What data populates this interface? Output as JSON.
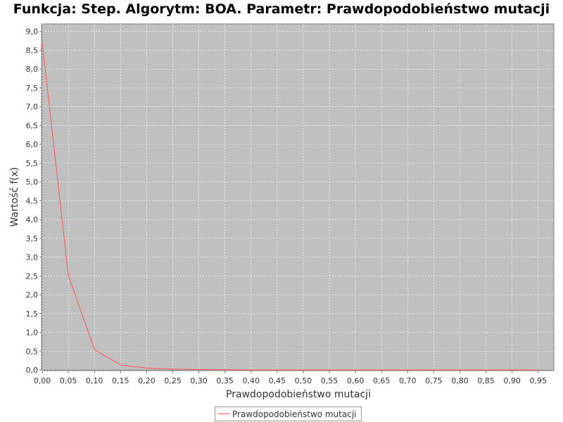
{
  "chart_data": {
    "type": "line",
    "title": "Funkcja: Step. Algorytm: BOA. Parametr: Prawdopodobieństwo mutacji",
    "xlabel": "Prawdopodobieństwo mutacji",
    "ylabel": "Wartość f(x)",
    "xlim": [
      0.0,
      0.98
    ],
    "ylim": [
      0.0,
      9.2
    ],
    "x_ticks": [
      "0,00",
      "0,05",
      "0,10",
      "0,15",
      "0,20",
      "0,25",
      "0,30",
      "0,35",
      "0,40",
      "0,45",
      "0,50",
      "0,55",
      "0,60",
      "0,65",
      "0,70",
      "0,75",
      "0,80",
      "0,85",
      "0,90",
      "0,95"
    ],
    "y_ticks": [
      "0,0",
      "0,5",
      "1,0",
      "1,5",
      "2,0",
      "2,5",
      "3,0",
      "3,5",
      "4,0",
      "4,5",
      "5,0",
      "5,5",
      "6,0",
      "6,5",
      "7,0",
      "7,5",
      "8,0",
      "8,5",
      "9,0"
    ],
    "grid": true,
    "legend_position": "bottom",
    "series": [
      {
        "name": "Prawdopodobieństwo mutacji",
        "color": "#ff5555",
        "x": [
          0.0,
          0.05,
          0.1,
          0.15,
          0.2,
          0.25,
          0.3,
          0.35,
          0.4,
          0.45,
          0.5,
          0.55,
          0.6,
          0.65,
          0.7,
          0.75,
          0.8,
          0.85,
          0.9,
          0.95
        ],
        "y": [
          8.7,
          2.52,
          0.54,
          0.13,
          0.05,
          0.02,
          0.01,
          0.01,
          0.0,
          0.0,
          0.0,
          0.0,
          0.0,
          0.0,
          0.0,
          0.0,
          0.0,
          0.0,
          0.0,
          0.0
        ]
      }
    ]
  }
}
